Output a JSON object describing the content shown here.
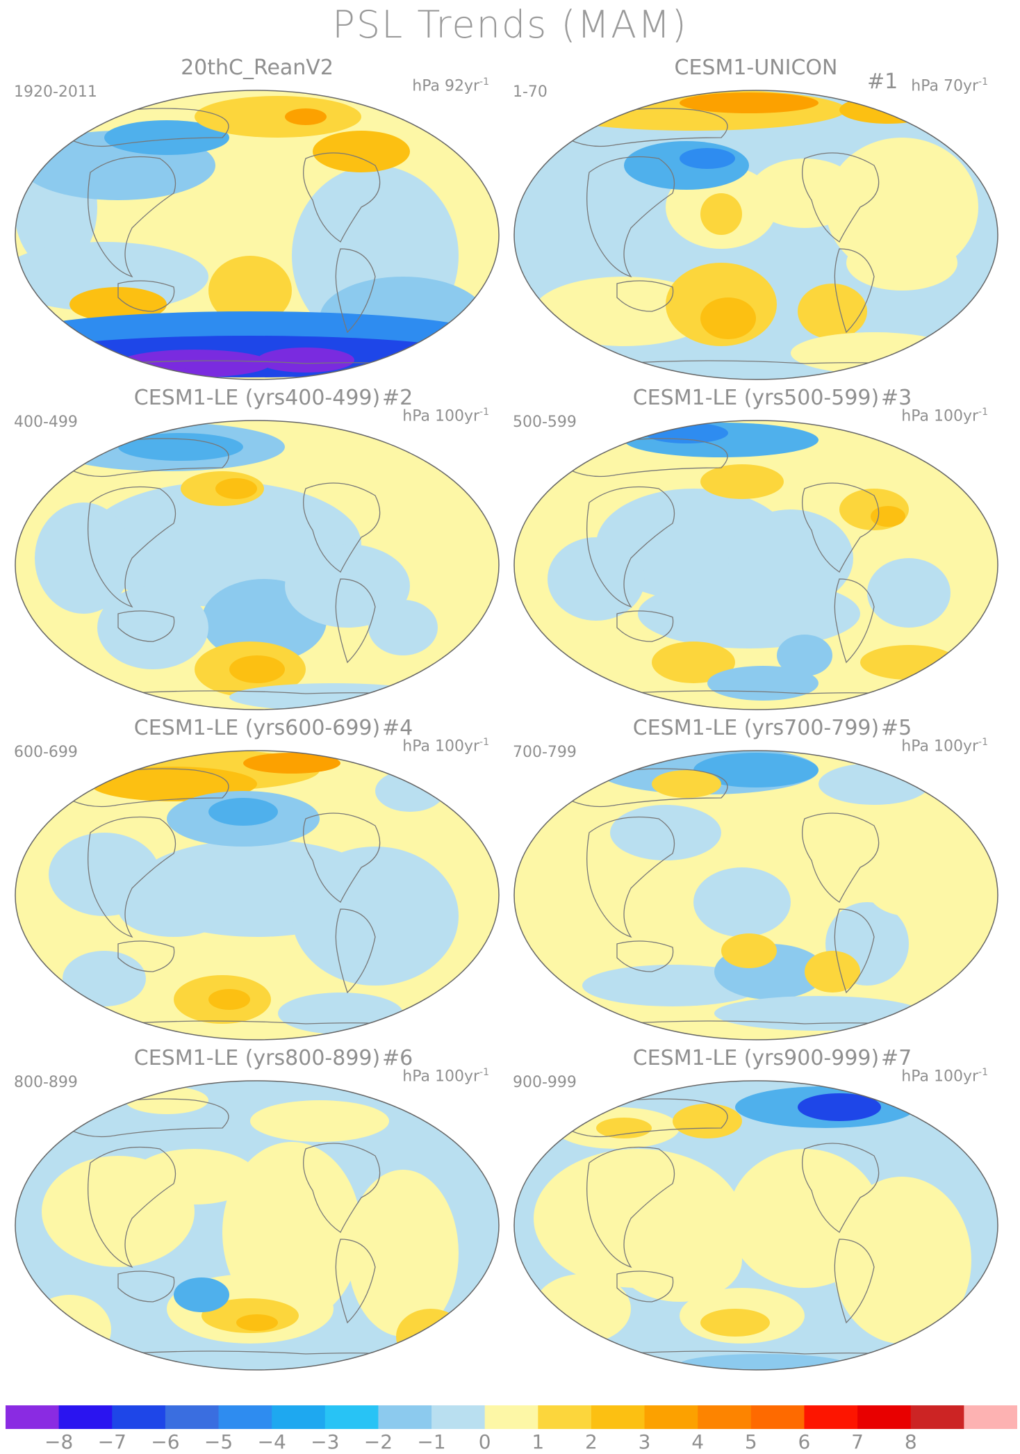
{
  "title": "PSL Trends (MAM)",
  "panels": [
    {
      "title": "20thC_ReanV2",
      "run": "",
      "period": "1920-2011",
      "units_prefix": "hPa 92yr",
      "units_exp": "-1"
    },
    {
      "title": "CESM1-UNICON",
      "run": "#1",
      "period": "1-70",
      "units_prefix": "hPa 70yr",
      "units_exp": "-1"
    },
    {
      "title": "CESM1-LE (yrs400-499)",
      "run": "#2",
      "period": "400-499",
      "units_prefix": "hPa 100yr",
      "units_exp": "-1"
    },
    {
      "title": "CESM1-LE (yrs500-599)",
      "run": "#3",
      "period": "500-599",
      "units_prefix": "hPa 100yr",
      "units_exp": "-1"
    },
    {
      "title": "CESM1-LE (yrs600-699)",
      "run": "#4",
      "period": "600-699",
      "units_prefix": "hPa 100yr",
      "units_exp": "-1"
    },
    {
      "title": "CESM1-LE (yrs700-799)",
      "run": "#5",
      "period": "700-799",
      "units_prefix": "hPa 100yr",
      "units_exp": "-1"
    },
    {
      "title": "CESM1-LE (yrs800-899)",
      "run": "#6",
      "period": "800-899",
      "units_prefix": "hPa 100yr",
      "units_exp": "-1"
    },
    {
      "title": "CESM1-LE (yrs900-999)",
      "run": "#7",
      "period": "900-999",
      "units_prefix": "hPa 100yr",
      "units_exp": "-1"
    }
  ],
  "colorbar": {
    "labels": [
      "−8",
      "−7",
      "−6",
      "−5",
      "−4",
      "−3",
      "−2",
      "−1",
      "0",
      "1",
      "2",
      "3",
      "4",
      "5",
      "6",
      "7",
      "8"
    ],
    "colors": [
      "#8a2be2",
      "#2a14f0",
      "#1e46e8",
      "#3a6ee0",
      "#2e8cf0",
      "#1ea8f0",
      "#28c3f5",
      "#8ccaee",
      "#b9dff0",
      "#fdf7a6",
      "#fcd63c",
      "#fcc012",
      "#fca100",
      "#fd8400",
      "#fe6a00",
      "#fd1500",
      "#e80000",
      "#cc2424",
      "#fdb2b2"
    ]
  }
}
